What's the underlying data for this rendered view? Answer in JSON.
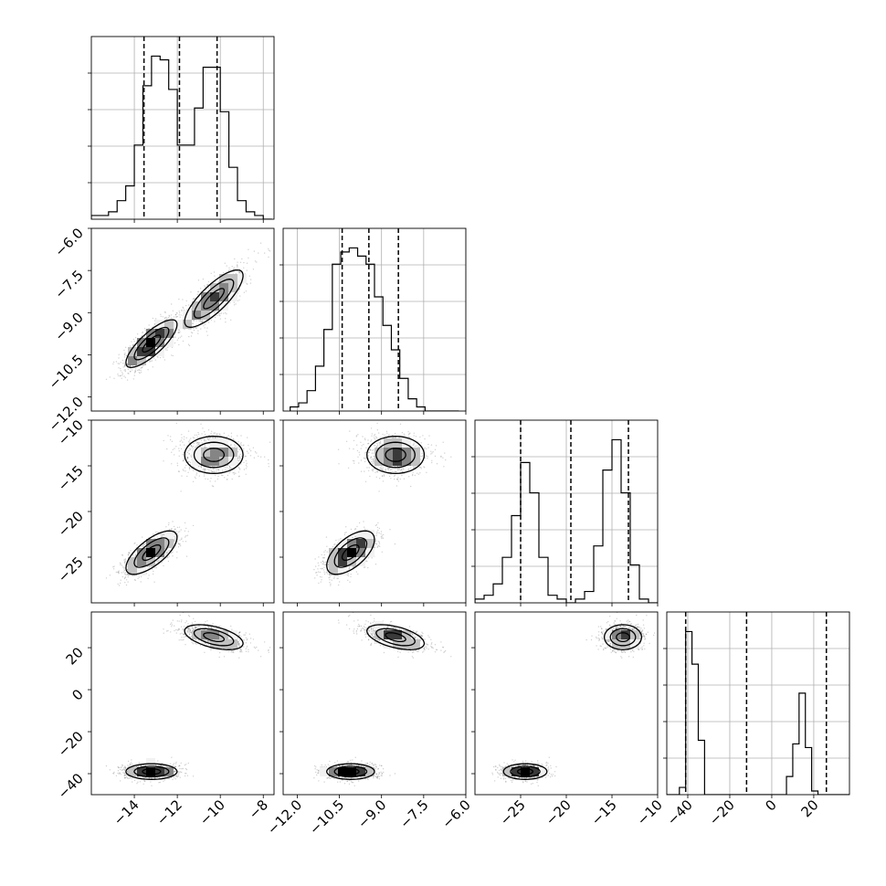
{
  "chart_data": {
    "type": "corner",
    "title": "",
    "parameters": [
      {
        "label": "",
        "range": [
          -16.0,
          -7.5
        ],
        "ticks": [
          -14,
          -12,
          -10,
          -8
        ]
      },
      {
        "label": "",
        "range": [
          -12.5,
          -6.0
        ],
        "ticks": [
          -12.0,
          -10.5,
          -9.0,
          -7.5,
          -6.0
        ]
      },
      {
        "label": "",
        "range": [
          -30.0,
          -10.0
        ],
        "ticks": [
          -25,
          -20,
          -15,
          -10
        ]
      },
      {
        "label": "",
        "range": [
          -50.0,
          37.0
        ],
        "ticks": [
          -40,
          -20,
          0,
          20
        ]
      }
    ],
    "tick_labels": {
      "p0": [
        "−14",
        "−12",
        "−10",
        "−8"
      ],
      "p1": [
        "−12.0",
        "−10.5",
        "−9.0",
        "−7.5",
        "−6.0"
      ],
      "p2": [
        "−25",
        "−20",
        "−15",
        "−10"
      ],
      "p3": [
        "−40",
        "−20",
        "0",
        "20"
      ]
    },
    "quantiles": [
      [
        -13.55,
        -11.9,
        -10.15
      ],
      [
        -10.4,
        -9.45,
        -8.4
      ],
      [
        -25.0,
        -19.5,
        -13.2
      ],
      [
        -41.0,
        -12.0,
        26.0
      ]
    ],
    "histograms": [
      {
        "edges_start": -16.0,
        "bin_width": 0.4,
        "counts": [
          1,
          1,
          2,
          5,
          9,
          20,
          36,
          44,
          43,
          35,
          20,
          20,
          30,
          41,
          41,
          29,
          14,
          5,
          2,
          1,
          0
        ]
      },
      {
        "edges_start": -12.25,
        "bin_width": 0.3,
        "counts": [
          1,
          2,
          5,
          11,
          20,
          36,
          39,
          40,
          38,
          36,
          28,
          21,
          15,
          8,
          3,
          1,
          0,
          0,
          0,
          0
        ]
      },
      {
        "edges_start": -30.0,
        "bin_width": 1.0,
        "counts": [
          1,
          2,
          5,
          12,
          23,
          37,
          29,
          12,
          2,
          1,
          0,
          1,
          3,
          15,
          35,
          43,
          29,
          10,
          1,
          0
        ]
      },
      {
        "edges_start": -50.0,
        "bin_width": 3.0,
        "counts": [
          0,
          0,
          2,
          45,
          36,
          15,
          0,
          0,
          0,
          0,
          0,
          0,
          0,
          0,
          0,
          0,
          0,
          0,
          0,
          5,
          14,
          28,
          13,
          1,
          0,
          0,
          0,
          0,
          0
        ]
      }
    ],
    "modes": [
      {
        "weight": 0.5,
        "mean": [
          -13.2,
          -10.1,
          -24.5,
          -39.0
        ],
        "sd": [
          0.7,
          0.5,
          1.4,
          2.2
        ],
        "corr01": 0.8,
        "corr02": 0.7,
        "corr12": 0.6
      },
      {
        "weight": 0.5,
        "mean": [
          -10.3,
          -8.5,
          -13.8,
          25.0
        ],
        "sd": [
          0.8,
          0.6,
          1.2,
          3.5
        ],
        "corr01": 0.8,
        "corr03": -0.5,
        "corr13": -0.5
      }
    ],
    "grid": true,
    "legend": "none"
  }
}
